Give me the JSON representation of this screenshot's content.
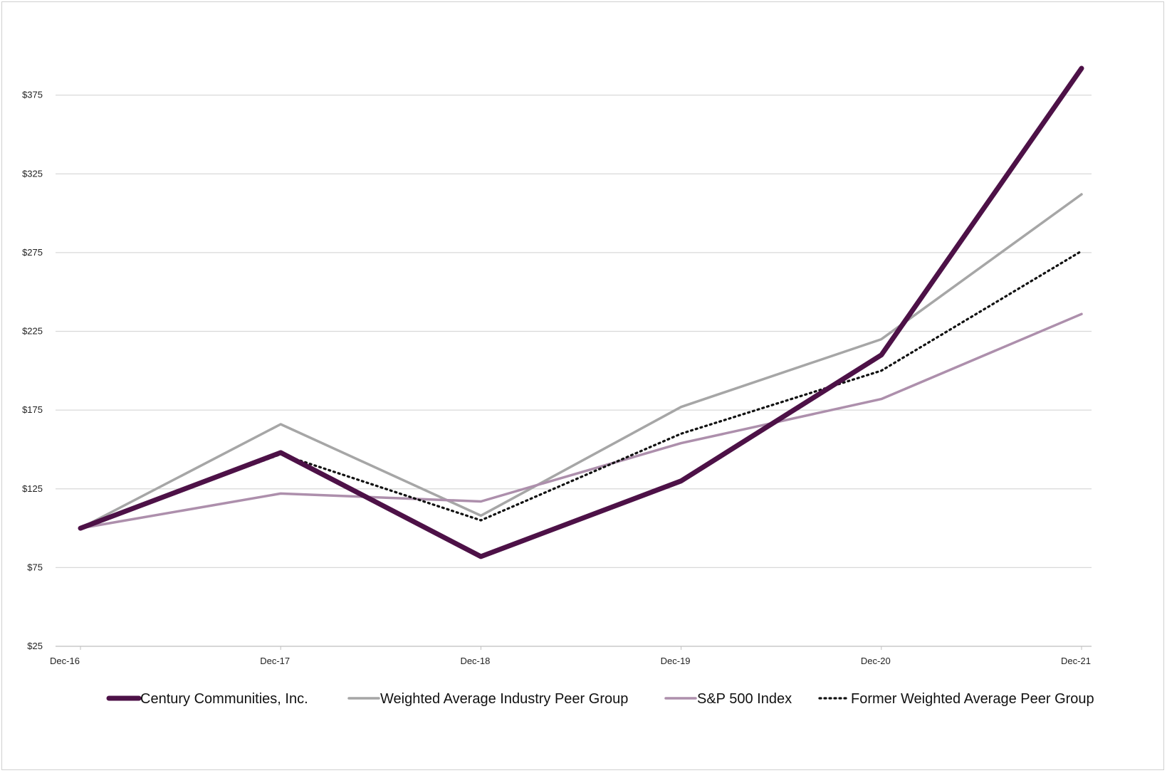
{
  "chart_data": {
    "type": "line",
    "title": "",
    "xlabel": "",
    "ylabel": "",
    "categories": [
      "Dec-16",
      "Dec-17",
      "Dec-18",
      "Dec-19",
      "Dec-20",
      "Dec-21"
    ],
    "y_ticks": [
      "$25",
      "$75",
      "$125",
      "$175",
      "$225",
      "$275",
      "$325",
      "$375"
    ],
    "ylim": [
      25,
      425
    ],
    "grid": true,
    "legend_position": "bottom",
    "series": [
      {
        "name": "Century Communities, Inc.",
        "values": [
          100,
          148,
          82,
          130,
          210,
          392
        ],
        "color": "#4d1147",
        "style": "solid",
        "weight": "thick"
      },
      {
        "name": "Weighted Average Industry Peer Group",
        "values": [
          100,
          166,
          108,
          177,
          220,
          312
        ],
        "color": "#a6a6a6",
        "style": "solid",
        "weight": "normal"
      },
      {
        "name": "S&P 500 Index",
        "values": [
          100,
          122,
          117,
          154,
          182,
          236
        ],
        "color": "#ad8fac",
        "style": "solid",
        "weight": "normal"
      },
      {
        "name": "Former Weighted Average Peer Group",
        "values": [
          100,
          147,
          105,
          160,
          200,
          276
        ],
        "color": "#111111",
        "style": "dotted",
        "weight": "normal"
      }
    ]
  }
}
